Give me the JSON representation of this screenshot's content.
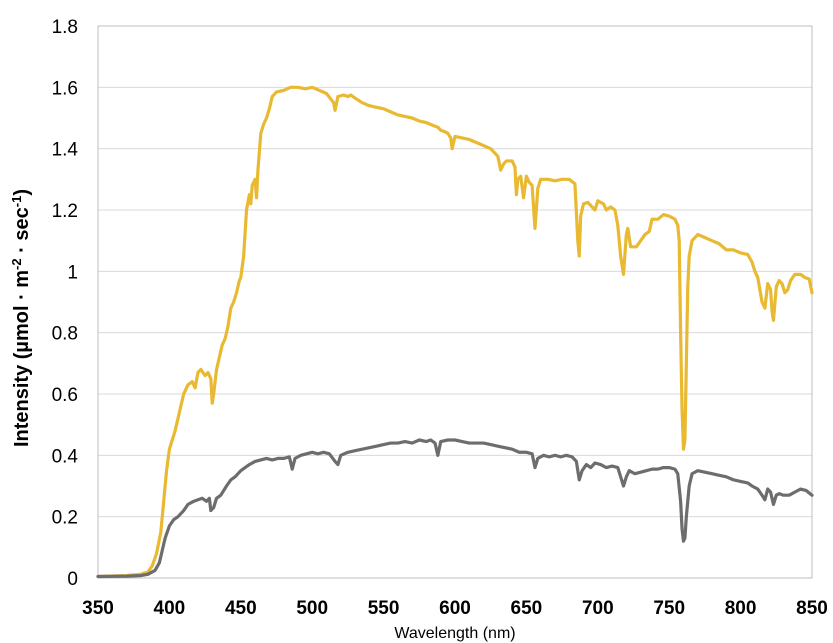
{
  "chart_data": {
    "type": "line",
    "title": "",
    "xlabel": "Wavelength (nm)",
    "ylabel": {
      "main": "Intensity (µmol · m",
      "sup1": "-2",
      "mid": " · sec",
      "sup2": "-1",
      "end": ")"
    },
    "xlim": [
      350,
      850
    ],
    "ylim": [
      0,
      1.8
    ],
    "x_ticks": [
      350,
      400,
      450,
      500,
      550,
      600,
      650,
      700,
      750,
      800,
      850
    ],
    "y_ticks": [
      0,
      0.2,
      0.4,
      0.6,
      0.8,
      1,
      1.2,
      1.4,
      1.6,
      1.8
    ],
    "y_tick_labels": [
      "0",
      "0.2",
      "0.4",
      "0.6",
      "0.8",
      "1",
      "1.2",
      "1.4",
      "1.6",
      "1.8"
    ],
    "grid": "horizontal",
    "legend": "none",
    "series": [
      {
        "color": "#e8b931",
        "points": [
          [
            350,
            0.005
          ],
          [
            370,
            0.008
          ],
          [
            380,
            0.012
          ],
          [
            385,
            0.02
          ],
          [
            388,
            0.04
          ],
          [
            391,
            0.08
          ],
          [
            394,
            0.15
          ],
          [
            396,
            0.25
          ],
          [
            398,
            0.35
          ],
          [
            400,
            0.42
          ],
          [
            402,
            0.45
          ],
          [
            404,
            0.48
          ],
          [
            406,
            0.52
          ],
          [
            408,
            0.56
          ],
          [
            410,
            0.6
          ],
          [
            413,
            0.63
          ],
          [
            416,
            0.64
          ],
          [
            418,
            0.62
          ],
          [
            420,
            0.67
          ],
          [
            422,
            0.68
          ],
          [
            425,
            0.66
          ],
          [
            427,
            0.67
          ],
          [
            429,
            0.65
          ],
          [
            430,
            0.57
          ],
          [
            431,
            0.6
          ],
          [
            433,
            0.68
          ],
          [
            435,
            0.72
          ],
          [
            437,
            0.76
          ],
          [
            439,
            0.78
          ],
          [
            441,
            0.82
          ],
          [
            443,
            0.88
          ],
          [
            445,
            0.9
          ],
          [
            447,
            0.93
          ],
          [
            449,
            0.97
          ],
          [
            450,
            0.98
          ],
          [
            452,
            1.05
          ],
          [
            454,
            1.2
          ],
          [
            456,
            1.25
          ],
          [
            457,
            1.22
          ],
          [
            458,
            1.28
          ],
          [
            460,
            1.3
          ],
          [
            461,
            1.24
          ],
          [
            462,
            1.33
          ],
          [
            464,
            1.45
          ],
          [
            466,
            1.48
          ],
          [
            468,
            1.5
          ],
          [
            470,
            1.53
          ],
          [
            472,
            1.57
          ],
          [
            475,
            1.585
          ],
          [
            480,
            1.59
          ],
          [
            485,
            1.6
          ],
          [
            490,
            1.6
          ],
          [
            495,
            1.595
          ],
          [
            500,
            1.6
          ],
          [
            505,
            1.59
          ],
          [
            510,
            1.58
          ],
          [
            515,
            1.55
          ],
          [
            516,
            1.525
          ],
          [
            518,
            1.57
          ],
          [
            522,
            1.575
          ],
          [
            525,
            1.57
          ],
          [
            527,
            1.575
          ],
          [
            530,
            1.565
          ],
          [
            535,
            1.55
          ],
          [
            540,
            1.54
          ],
          [
            545,
            1.535
          ],
          [
            550,
            1.53
          ],
          [
            555,
            1.52
          ],
          [
            560,
            1.51
          ],
          [
            565,
            1.505
          ],
          [
            570,
            1.5
          ],
          [
            575,
            1.49
          ],
          [
            580,
            1.485
          ],
          [
            585,
            1.475
          ],
          [
            588,
            1.47
          ],
          [
            590,
            1.46
          ],
          [
            593,
            1.455
          ],
          [
            595,
            1.45
          ],
          [
            597,
            1.435
          ],
          [
            598,
            1.4
          ],
          [
            600,
            1.44
          ],
          [
            605,
            1.435
          ],
          [
            610,
            1.43
          ],
          [
            615,
            1.42
          ],
          [
            620,
            1.41
          ],
          [
            625,
            1.4
          ],
          [
            628,
            1.385
          ],
          [
            630,
            1.375
          ],
          [
            632,
            1.33
          ],
          [
            634,
            1.35
          ],
          [
            636,
            1.36
          ],
          [
            640,
            1.36
          ],
          [
            642,
            1.34
          ],
          [
            643,
            1.25
          ],
          [
            644,
            1.3
          ],
          [
            646,
            1.31
          ],
          [
            648,
            1.24
          ],
          [
            650,
            1.31
          ],
          [
            652,
            1.29
          ],
          [
            654,
            1.28
          ],
          [
            656,
            1.14
          ],
          [
            658,
            1.27
          ],
          [
            660,
            1.3
          ],
          [
            665,
            1.3
          ],
          [
            670,
            1.295
          ],
          [
            675,
            1.3
          ],
          [
            680,
            1.3
          ],
          [
            684,
            1.285
          ],
          [
            686,
            1.1
          ],
          [
            687,
            1.05
          ],
          [
            688,
            1.18
          ],
          [
            690,
            1.22
          ],
          [
            693,
            1.225
          ],
          [
            696,
            1.21
          ],
          [
            698,
            1.2
          ],
          [
            700,
            1.23
          ],
          [
            704,
            1.22
          ],
          [
            706,
            1.2
          ],
          [
            709,
            1.21
          ],
          [
            712,
            1.2
          ],
          [
            714,
            1.15
          ],
          [
            716,
            1.05
          ],
          [
            718,
            0.99
          ],
          [
            720,
            1.12
          ],
          [
            721,
            1.14
          ],
          [
            723,
            1.08
          ],
          [
            727,
            1.08
          ],
          [
            730,
            1.1
          ],
          [
            733,
            1.12
          ],
          [
            736,
            1.13
          ],
          [
            738,
            1.17
          ],
          [
            742,
            1.17
          ],
          [
            746,
            1.185
          ],
          [
            750,
            1.18
          ],
          [
            754,
            1.17
          ],
          [
            756,
            1.15
          ],
          [
            757,
            1.1
          ],
          [
            758,
            0.8
          ],
          [
            759,
            0.55
          ],
          [
            760,
            0.42
          ],
          [
            761,
            0.45
          ],
          [
            762,
            0.7
          ],
          [
            763,
            0.95
          ],
          [
            764,
            1.05
          ],
          [
            766,
            1.1
          ],
          [
            770,
            1.12
          ],
          [
            775,
            1.11
          ],
          [
            780,
            1.1
          ],
          [
            785,
            1.09
          ],
          [
            790,
            1.07
          ],
          [
            795,
            1.07
          ],
          [
            800,
            1.06
          ],
          [
            805,
            1.055
          ],
          [
            808,
            1.03
          ],
          [
            810,
            1.0
          ],
          [
            812,
            0.98
          ],
          [
            815,
            0.9
          ],
          [
            817,
            0.88
          ],
          [
            819,
            0.96
          ],
          [
            821,
            0.94
          ],
          [
            822,
            0.87
          ],
          [
            823,
            0.84
          ],
          [
            825,
            0.95
          ],
          [
            827,
            0.97
          ],
          [
            829,
            0.96
          ],
          [
            831,
            0.93
          ],
          [
            833,
            0.94
          ],
          [
            835,
            0.97
          ],
          [
            838,
            0.99
          ],
          [
            842,
            0.99
          ],
          [
            845,
            0.98
          ],
          [
            848,
            0.975
          ],
          [
            850,
            0.93
          ]
        ]
      },
      {
        "color": "#6d6d6d",
        "points": [
          [
            350,
            0.005
          ],
          [
            370,
            0.006
          ],
          [
            380,
            0.008
          ],
          [
            385,
            0.012
          ],
          [
            390,
            0.025
          ],
          [
            393,
            0.05
          ],
          [
            395,
            0.09
          ],
          [
            397,
            0.13
          ],
          [
            400,
            0.17
          ],
          [
            403,
            0.19
          ],
          [
            406,
            0.2
          ],
          [
            410,
            0.22
          ],
          [
            413,
            0.24
          ],
          [
            417,
            0.25
          ],
          [
            420,
            0.255
          ],
          [
            423,
            0.26
          ],
          [
            426,
            0.25
          ],
          [
            428,
            0.26
          ],
          [
            429,
            0.22
          ],
          [
            431,
            0.23
          ],
          [
            433,
            0.26
          ],
          [
            436,
            0.27
          ],
          [
            440,
            0.3
          ],
          [
            443,
            0.32
          ],
          [
            446,
            0.33
          ],
          [
            450,
            0.35
          ],
          [
            453,
            0.36
          ],
          [
            456,
            0.37
          ],
          [
            460,
            0.38
          ],
          [
            464,
            0.385
          ],
          [
            468,
            0.39
          ],
          [
            472,
            0.385
          ],
          [
            476,
            0.39
          ],
          [
            480,
            0.39
          ],
          [
            484,
            0.395
          ],
          [
            486,
            0.355
          ],
          [
            488,
            0.39
          ],
          [
            492,
            0.4
          ],
          [
            496,
            0.405
          ],
          [
            500,
            0.41
          ],
          [
            504,
            0.405
          ],
          [
            508,
            0.41
          ],
          [
            512,
            0.405
          ],
          [
            516,
            0.38
          ],
          [
            518,
            0.37
          ],
          [
            520,
            0.4
          ],
          [
            525,
            0.41
          ],
          [
            530,
            0.415
          ],
          [
            535,
            0.42
          ],
          [
            540,
            0.425
          ],
          [
            545,
            0.43
          ],
          [
            550,
            0.435
          ],
          [
            555,
            0.44
          ],
          [
            560,
            0.44
          ],
          [
            565,
            0.445
          ],
          [
            570,
            0.44
          ],
          [
            575,
            0.45
          ],
          [
            580,
            0.445
          ],
          [
            583,
            0.45
          ],
          [
            586,
            0.44
          ],
          [
            588,
            0.4
          ],
          [
            590,
            0.445
          ],
          [
            595,
            0.45
          ],
          [
            600,
            0.45
          ],
          [
            605,
            0.445
          ],
          [
            610,
            0.44
          ],
          [
            615,
            0.44
          ],
          [
            620,
            0.44
          ],
          [
            625,
            0.435
          ],
          [
            630,
            0.43
          ],
          [
            635,
            0.425
          ],
          [
            640,
            0.42
          ],
          [
            645,
            0.41
          ],
          [
            650,
            0.41
          ],
          [
            654,
            0.405
          ],
          [
            656,
            0.36
          ],
          [
            658,
            0.39
          ],
          [
            662,
            0.4
          ],
          [
            666,
            0.395
          ],
          [
            670,
            0.4
          ],
          [
            674,
            0.395
          ],
          [
            678,
            0.4
          ],
          [
            682,
            0.395
          ],
          [
            685,
            0.38
          ],
          [
            687,
            0.32
          ],
          [
            689,
            0.35
          ],
          [
            692,
            0.37
          ],
          [
            695,
            0.36
          ],
          [
            698,
            0.375
          ],
          [
            702,
            0.37
          ],
          [
            706,
            0.36
          ],
          [
            710,
            0.365
          ],
          [
            714,
            0.36
          ],
          [
            716,
            0.33
          ],
          [
            718,
            0.3
          ],
          [
            720,
            0.33
          ],
          [
            722,
            0.35
          ],
          [
            726,
            0.34
          ],
          [
            730,
            0.345
          ],
          [
            734,
            0.35
          ],
          [
            738,
            0.355
          ],
          [
            742,
            0.355
          ],
          [
            746,
            0.36
          ],
          [
            750,
            0.36
          ],
          [
            754,
            0.355
          ],
          [
            756,
            0.34
          ],
          [
            758,
            0.25
          ],
          [
            759,
            0.16
          ],
          [
            760,
            0.12
          ],
          [
            761,
            0.13
          ],
          [
            762,
            0.2
          ],
          [
            764,
            0.3
          ],
          [
            766,
            0.34
          ],
          [
            770,
            0.35
          ],
          [
            775,
            0.345
          ],
          [
            780,
            0.34
          ],
          [
            785,
            0.335
          ],
          [
            790,
            0.33
          ],
          [
            795,
            0.32
          ],
          [
            800,
            0.315
          ],
          [
            805,
            0.31
          ],
          [
            808,
            0.3
          ],
          [
            812,
            0.29
          ],
          [
            815,
            0.27
          ],
          [
            817,
            0.255
          ],
          [
            819,
            0.29
          ],
          [
            821,
            0.28
          ],
          [
            823,
            0.24
          ],
          [
            825,
            0.27
          ],
          [
            827,
            0.275
          ],
          [
            830,
            0.27
          ],
          [
            834,
            0.27
          ],
          [
            838,
            0.28
          ],
          [
            842,
            0.29
          ],
          [
            846,
            0.285
          ],
          [
            850,
            0.27
          ]
        ]
      }
    ]
  }
}
